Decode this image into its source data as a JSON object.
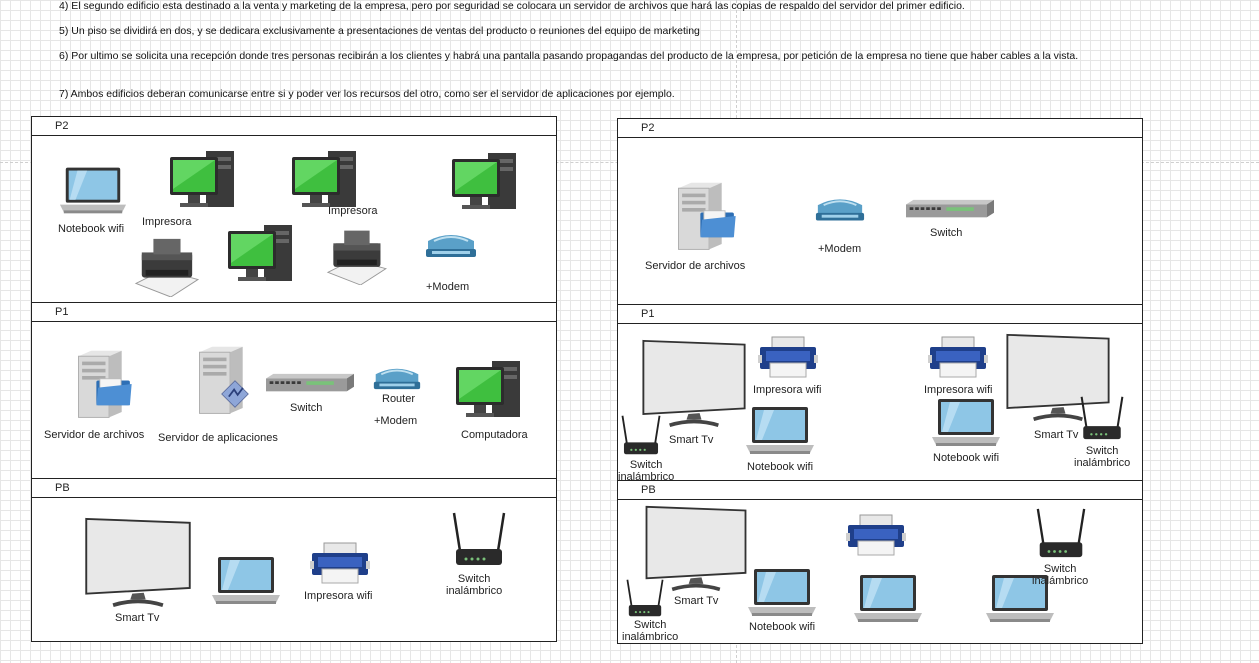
{
  "instructions": [
    "4) El segundo edificio esta destinado a la venta y marketing de la empresa, pero por seguridad se colocara un servidor de archivos que hará las copias de respaldo del servidor del primer edificio.",
    "5) Un piso se dividirá en dos, y se dedicara exclusivamente a presentaciones de ventas del producto o reuniones del equipo de marketing",
    "6) Por ultimo se solicita una recepción donde tres personas recibirán a los clientes y habrá una pantalla pasando propagandas del producto de la empresa, por petición de la empresa no tiene que haber cables a la vista.",
    "7) Ambos edificios deberan comunicarse entre si y poder ver los recursos del otro, como ser el servidor de aplicaciones por ejemplo."
  ],
  "building1": {
    "p2": {
      "title": "P2",
      "notebook": "Notebook wifi",
      "printer1": "Impresora",
      "printer2": "Impresora",
      "modem": "+Modem"
    },
    "p1": {
      "title": "P1",
      "file_server": "Servidor de archivos",
      "app_server": "Servidor de aplicaciones",
      "switch": "Switch",
      "router": "Router",
      "modem": "+Modem",
      "computer": "Computadora"
    },
    "pb": {
      "title": "PB",
      "tv": "Smart Tv",
      "printer": "Impresora wifi",
      "wireless_switch": "Switch\ninalámbrico"
    }
  },
  "building2": {
    "p2": {
      "title": "P2",
      "file_server": "Servidor de archivos",
      "modem": "+Modem",
      "switch": "Switch"
    },
    "p1": {
      "title": "P1",
      "printer_left": "Impresora wifi",
      "printer_right": "Impresora wifi",
      "tv_left": "Smart Tv",
      "tv_right": "Smart Tv",
      "notebook_left": "Notebook wifi",
      "notebook_right": "Notebook wifi",
      "wswitch_left": "Switch\ninalámbrico",
      "wswitch_right": "Switch\ninalámbrico"
    },
    "pb": {
      "title": "PB",
      "tv": "Smart Tv",
      "notebook": "Notebook wifi",
      "wswitch_left": "Switch\ninalámbrico",
      "wswitch_right": "Switch\ninalámbrico"
    }
  },
  "colors": {
    "screen_green": "#3fbf3f",
    "laptop_screen": "#8ec6e6",
    "folder_blue": "#3b7bc2",
    "border": "#222222"
  }
}
